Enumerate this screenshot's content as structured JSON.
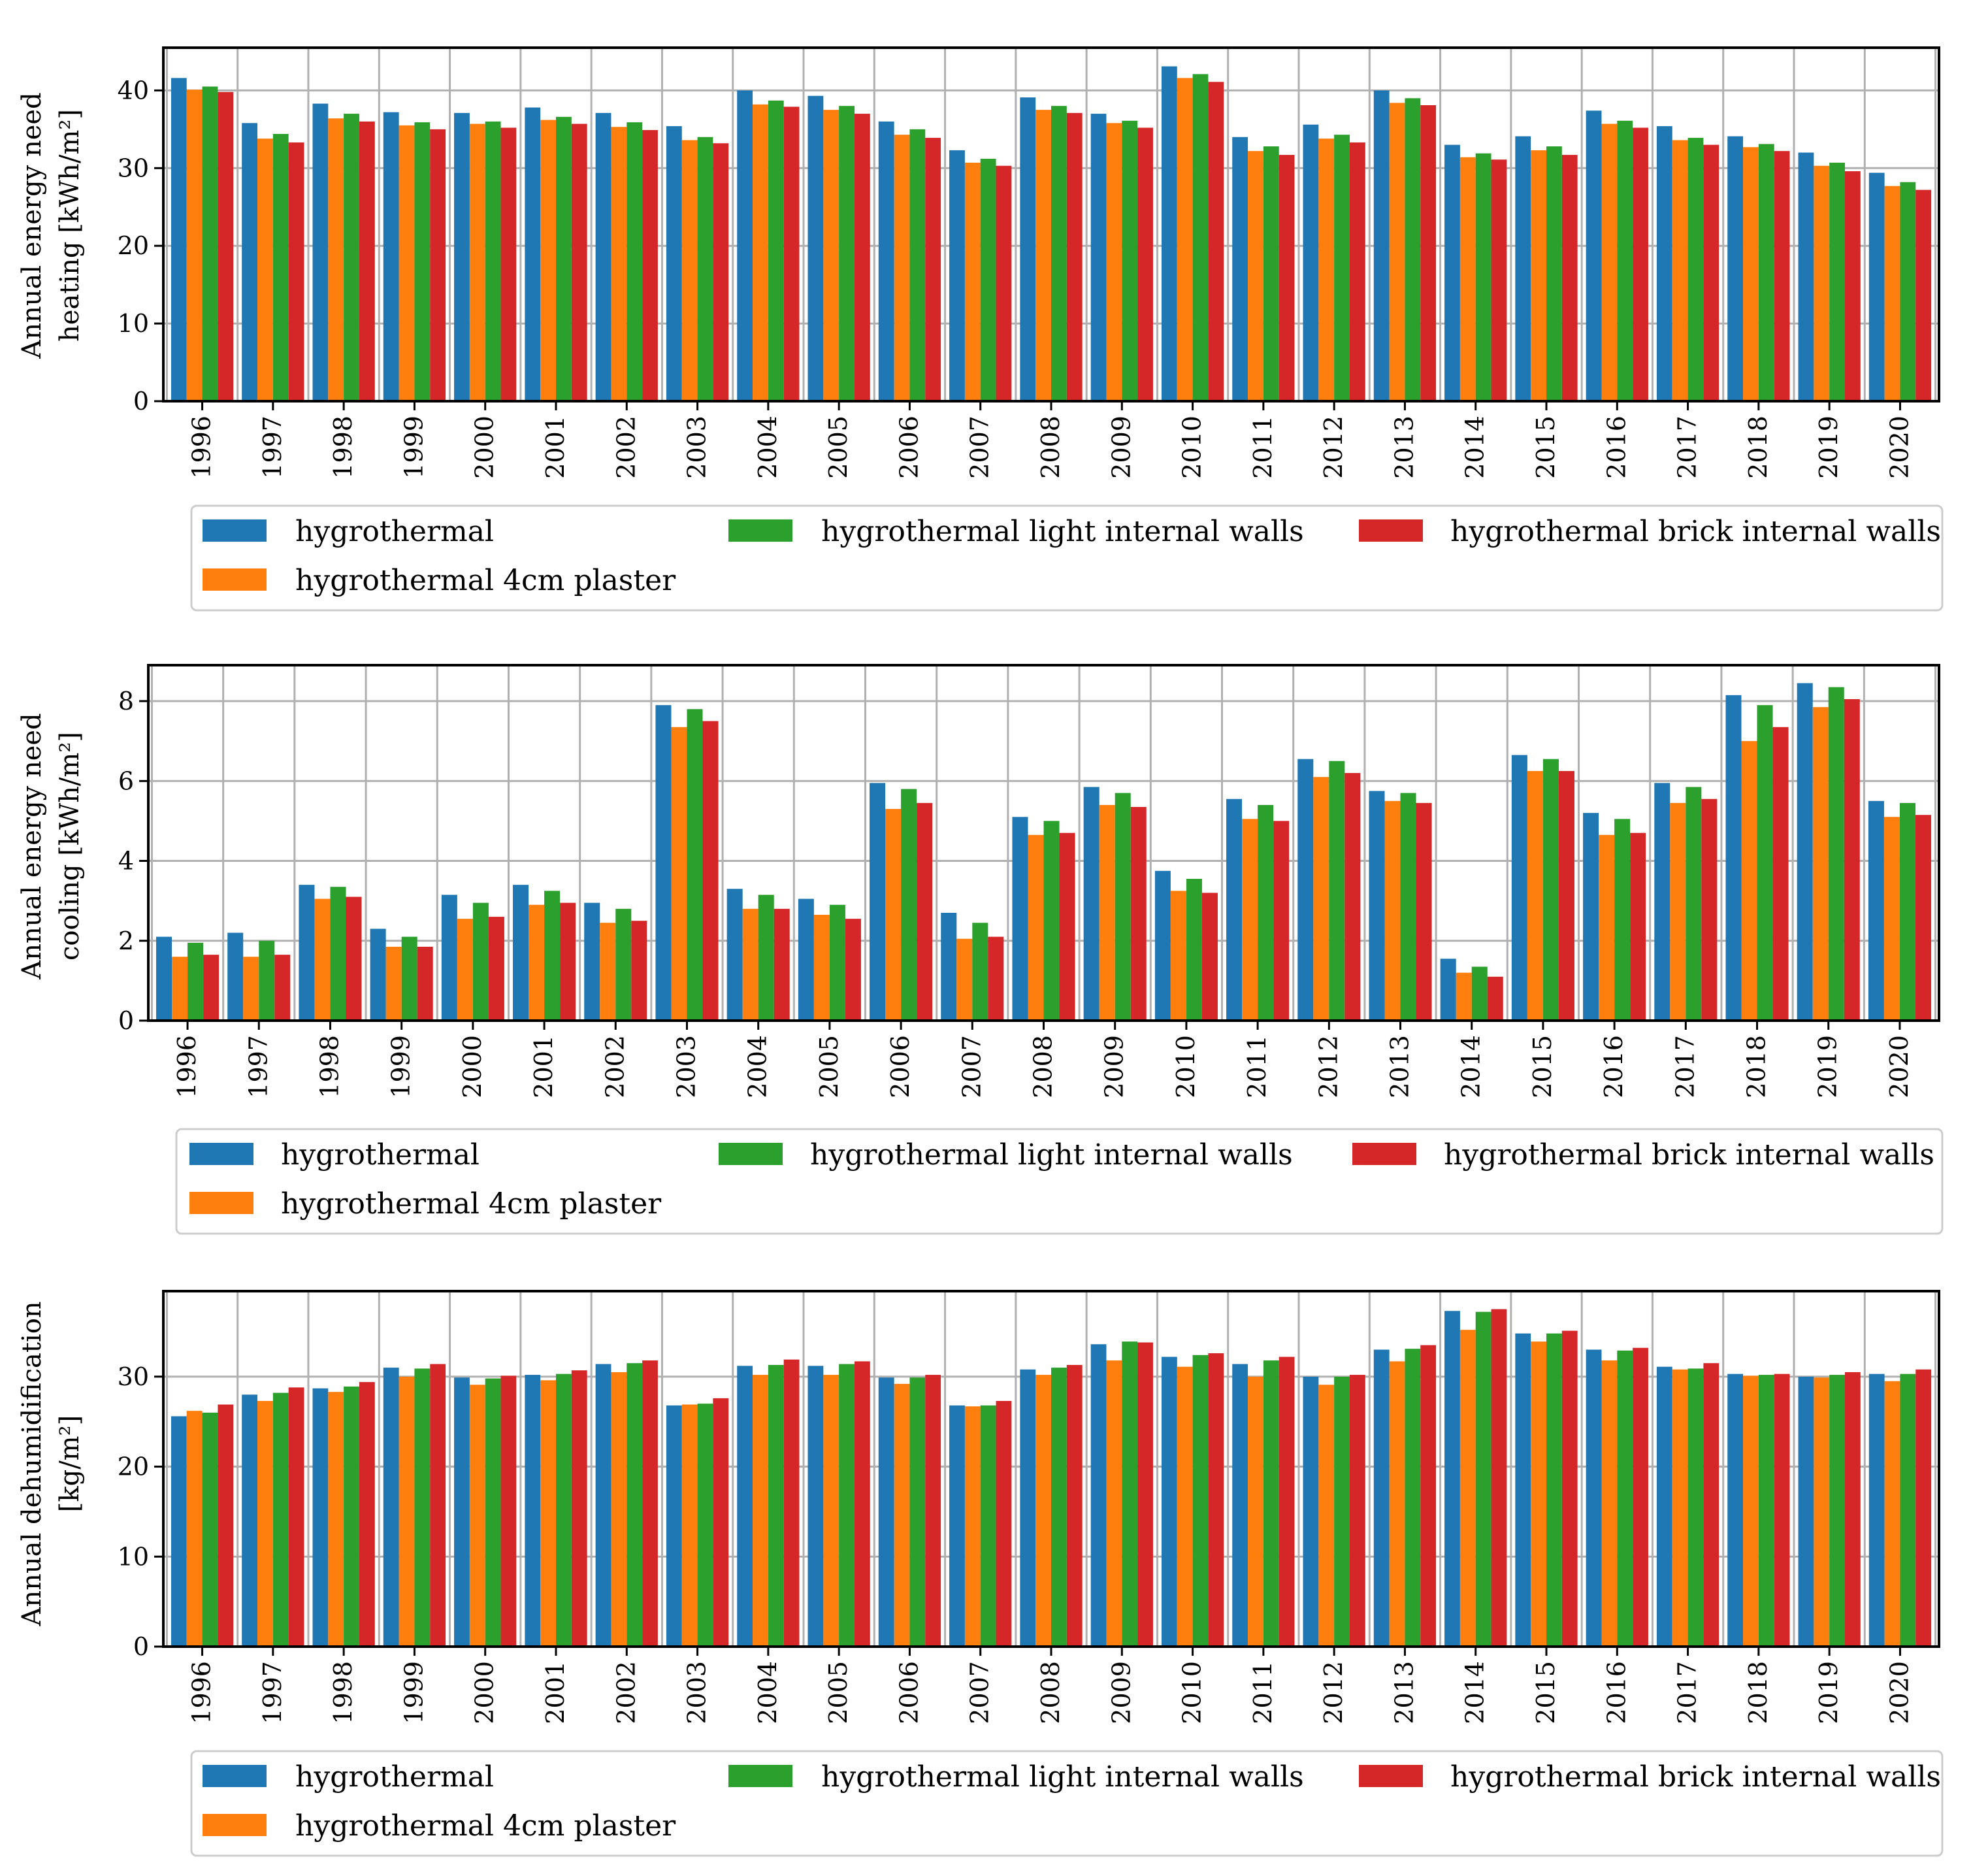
{
  "colors": {
    "series": [
      "#1f77b4",
      "#ff7f0e",
      "#2ca02c",
      "#d62728"
    ],
    "grid": "#b0b0b0",
    "legend_border": "#cccccc"
  },
  "legend": {
    "entries": [
      "hygrothermal",
      "hygrothermal 4cm plaster",
      "hygrothermal light internal walls",
      "hygrothermal brick internal walls"
    ]
  },
  "chart_data": [
    {
      "type": "bar",
      "ylabel_line1": "Annual energy need",
      "ylabel_line2": "heating [kWh/m²]",
      "ylim": [
        0,
        45.5
      ],
      "yticks": [
        0,
        10,
        20,
        30,
        40
      ],
      "grid": true,
      "categories": [
        "1996",
        "1997",
        "1998",
        "1999",
        "2000",
        "2001",
        "2002",
        "2003",
        "2004",
        "2005",
        "2006",
        "2007",
        "2008",
        "2009",
        "2010",
        "2011",
        "2012",
        "2013",
        "2014",
        "2015",
        "2016",
        "2017",
        "2018",
        "2019",
        "2020"
      ],
      "series": [
        {
          "name": "hygrothermal",
          "values": [
            41.6,
            35.8,
            38.3,
            37.2,
            37.1,
            37.8,
            37.1,
            35.4,
            40.0,
            39.3,
            36.0,
            32.3,
            39.1,
            37.0,
            43.1,
            34.0,
            35.6,
            40.0,
            33.0,
            34.1,
            37.4,
            35.4,
            34.1,
            32.0,
            29.4
          ]
        },
        {
          "name": "hygrothermal 4cm plaster",
          "values": [
            40.1,
            33.8,
            36.4,
            35.5,
            35.7,
            36.2,
            35.3,
            33.6,
            38.2,
            37.5,
            34.3,
            30.7,
            37.5,
            35.8,
            41.6,
            32.2,
            33.8,
            38.4,
            31.4,
            32.3,
            35.7,
            33.6,
            32.7,
            30.3,
            27.7
          ]
        },
        {
          "name": "hygrothermal light internal walls",
          "values": [
            40.5,
            34.4,
            37.0,
            35.9,
            36.0,
            36.6,
            35.9,
            34.0,
            38.7,
            38.0,
            35.0,
            31.2,
            38.0,
            36.1,
            42.1,
            32.8,
            34.3,
            39.0,
            31.9,
            32.8,
            36.1,
            33.9,
            33.1,
            30.7,
            28.2
          ]
        },
        {
          "name": "hygrothermal brick internal walls",
          "values": [
            39.8,
            33.3,
            36.0,
            35.0,
            35.2,
            35.7,
            34.9,
            33.2,
            37.9,
            37.0,
            33.9,
            30.3,
            37.1,
            35.2,
            41.1,
            31.7,
            33.3,
            38.1,
            31.1,
            31.7,
            35.2,
            33.0,
            32.2,
            29.6,
            27.2
          ]
        }
      ]
    },
    {
      "type": "bar",
      "ylabel_line1": "Annual energy need",
      "ylabel_line2": "cooling [kWh/m²]",
      "ylim": [
        0,
        8.9
      ],
      "yticks": [
        0,
        2,
        4,
        6,
        8
      ],
      "grid": true,
      "categories": [
        "1996",
        "1997",
        "1998",
        "1999",
        "2000",
        "2001",
        "2002",
        "2003",
        "2004",
        "2005",
        "2006",
        "2007",
        "2008",
        "2009",
        "2010",
        "2011",
        "2012",
        "2013",
        "2014",
        "2015",
        "2016",
        "2017",
        "2018",
        "2019",
        "2020"
      ],
      "series": [
        {
          "name": "hygrothermal",
          "values": [
            2.1,
            2.2,
            3.4,
            2.3,
            3.15,
            3.4,
            2.95,
            7.9,
            3.3,
            3.05,
            5.95,
            2.7,
            5.1,
            5.85,
            3.75,
            5.55,
            6.55,
            5.75,
            1.55,
            6.65,
            5.2,
            5.95,
            8.15,
            8.45,
            5.5
          ]
        },
        {
          "name": "hygrothermal 4cm plaster",
          "values": [
            1.6,
            1.6,
            3.05,
            1.85,
            2.55,
            2.9,
            2.45,
            7.35,
            2.8,
            2.65,
            5.3,
            2.05,
            4.65,
            5.4,
            3.25,
            5.05,
            6.1,
            5.5,
            1.2,
            6.25,
            4.65,
            5.45,
            7.0,
            7.85,
            5.1
          ]
        },
        {
          "name": "hygrothermal light internal walls",
          "values": [
            1.95,
            2.0,
            3.35,
            2.1,
            2.95,
            3.25,
            2.8,
            7.8,
            3.15,
            2.9,
            5.8,
            2.45,
            5.0,
            5.7,
            3.55,
            5.4,
            6.5,
            5.7,
            1.35,
            6.55,
            5.05,
            5.85,
            7.9,
            8.35,
            5.45
          ]
        },
        {
          "name": "hygrothermal brick internal walls",
          "values": [
            1.65,
            1.65,
            3.1,
            1.85,
            2.6,
            2.95,
            2.5,
            7.5,
            2.8,
            2.55,
            5.45,
            2.1,
            4.7,
            5.35,
            3.2,
            5.0,
            6.2,
            5.45,
            1.1,
            6.25,
            4.7,
            5.55,
            7.35,
            8.05,
            5.15
          ]
        }
      ]
    },
    {
      "type": "bar",
      "ylabel_line1": "Annual dehumidification",
      "ylabel_line2": "[kg/m²]",
      "ylim": [
        0,
        39.5
      ],
      "yticks": [
        0,
        10,
        20,
        30
      ],
      "grid": true,
      "categories": [
        "1996",
        "1997",
        "1998",
        "1999",
        "2000",
        "2001",
        "2002",
        "2003",
        "2004",
        "2005",
        "2006",
        "2007",
        "2008",
        "2009",
        "2010",
        "2011",
        "2012",
        "2013",
        "2014",
        "2015",
        "2016",
        "2017",
        "2018",
        "2019",
        "2020"
      ],
      "series": [
        {
          "name": "hygrothermal",
          "values": [
            25.6,
            28.0,
            28.7,
            31.0,
            29.9,
            30.2,
            31.4,
            26.8,
            31.2,
            31.2,
            29.9,
            26.8,
            30.8,
            33.6,
            32.2,
            31.4,
            30.0,
            33.0,
            37.3,
            34.8,
            33.0,
            31.1,
            30.3,
            30.0,
            30.3
          ]
        },
        {
          "name": "hygrothermal 4cm plaster",
          "values": [
            26.2,
            27.3,
            28.3,
            30.0,
            29.1,
            29.6,
            30.5,
            26.9,
            30.2,
            30.2,
            29.2,
            26.7,
            30.2,
            31.8,
            31.1,
            30.0,
            29.1,
            31.7,
            35.2,
            33.9,
            31.8,
            30.8,
            30.1,
            29.9,
            29.5
          ]
        },
        {
          "name": "hygrothermal light internal walls",
          "values": [
            26.0,
            28.2,
            28.9,
            30.9,
            29.8,
            30.3,
            31.5,
            27.0,
            31.3,
            31.4,
            29.9,
            26.8,
            31.0,
            33.9,
            32.4,
            31.8,
            30.0,
            33.1,
            37.2,
            34.8,
            32.9,
            30.9,
            30.2,
            30.2,
            30.3
          ]
        },
        {
          "name": "hygrothermal brick internal walls",
          "values": [
            26.9,
            28.8,
            29.4,
            31.4,
            30.1,
            30.7,
            31.8,
            27.6,
            31.9,
            31.7,
            30.2,
            27.3,
            31.3,
            33.8,
            32.6,
            32.2,
            30.2,
            33.5,
            37.5,
            35.1,
            33.2,
            31.5,
            30.3,
            30.5,
            30.8
          ]
        }
      ]
    }
  ]
}
